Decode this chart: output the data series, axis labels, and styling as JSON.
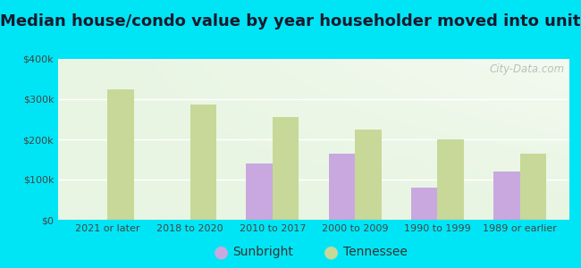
{
  "title": "Median house/condo value by year householder moved into unit",
  "categories": [
    "2021 or later",
    "2018 to 2020",
    "2010 to 2017",
    "2000 to 2009",
    "1990 to 1999",
    "1989 or earlier"
  ],
  "sunbright_values": [
    null,
    null,
    140000,
    165000,
    80000,
    120000
  ],
  "tennessee_values": [
    325000,
    287000,
    255000,
    225000,
    200000,
    165000
  ],
  "sunbright_color": "#c9a8e0",
  "tennessee_color": "#c8d898",
  "background_outer": "#00e5f5",
  "background_inner": "#e8f5e2",
  "ylim": [
    0,
    400000
  ],
  "yticks": [
    0,
    100000,
    200000,
    300000,
    400000
  ],
  "ytick_labels": [
    "$0",
    "$100k",
    "$200k",
    "$300k",
    "$400k"
  ],
  "bar_width": 0.32,
  "legend_sunbright": "Sunbright",
  "legend_tennessee": "Tennessee",
  "watermark": "City-Data.com",
  "title_fontsize": 13,
  "tick_fontsize": 8,
  "legend_fontsize": 10
}
